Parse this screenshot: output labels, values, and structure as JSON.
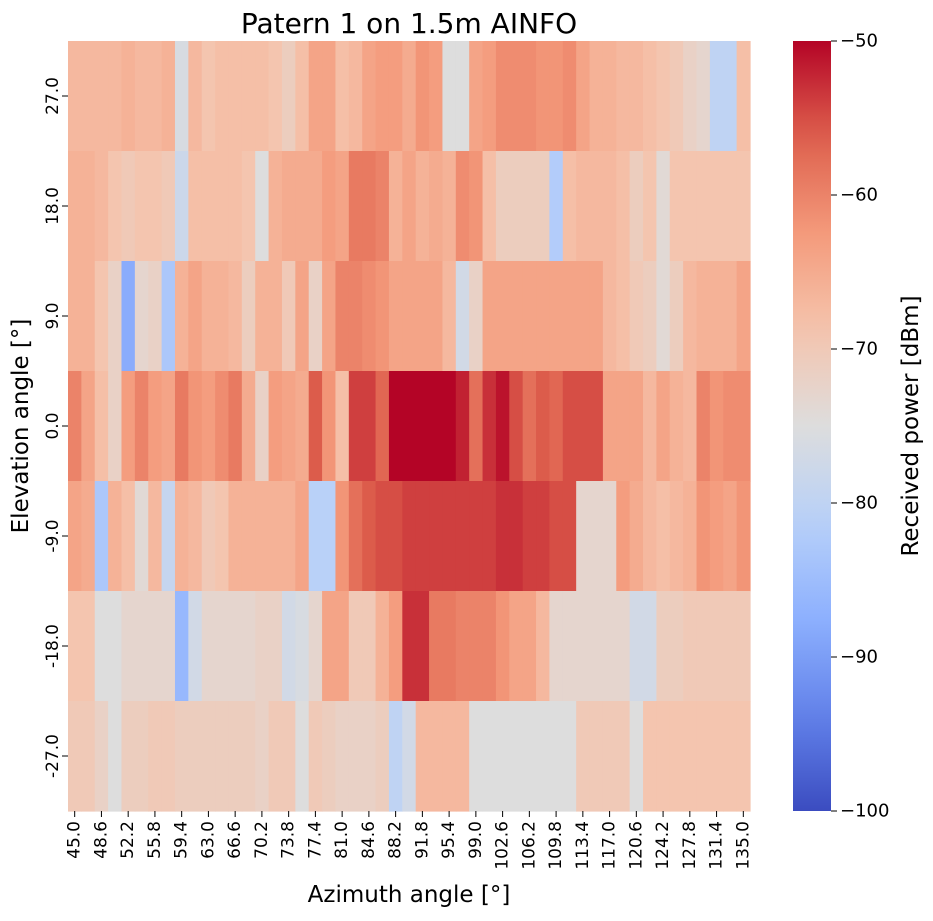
{
  "chart_data": {
    "type": "heatmap",
    "title": "Patern 1 on 1.5m AINFO",
    "xlabel": "Azimuth angle [°]",
    "ylabel": "Elevation angle [°]",
    "x": [
      45.0,
      46.8,
      48.6,
      50.4,
      52.2,
      54.0,
      55.8,
      57.6,
      59.4,
      61.2,
      63.0,
      64.8,
      66.6,
      68.4,
      70.2,
      72.0,
      73.8,
      75.6,
      77.4,
      79.2,
      81.0,
      82.8,
      84.6,
      86.4,
      88.2,
      90.0,
      91.8,
      93.6,
      95.4,
      97.2,
      99.0,
      100.8,
      102.6,
      104.4,
      106.2,
      108.0,
      109.8,
      111.6,
      113.4,
      115.2,
      117.0,
      118.8,
      120.6,
      122.4,
      124.2,
      126.0,
      127.8,
      129.6,
      131.4,
      133.2,
      135.0
    ],
    "x_tick_labels": [
      "45.0",
      "48.6",
      "52.2",
      "55.8",
      "59.4",
      "63.0",
      "66.6",
      "70.2",
      "73.8",
      "77.4",
      "81.0",
      "84.6",
      "88.2",
      "91.8",
      "95.4",
      "99.0",
      "102.6",
      "106.2",
      "109.8",
      "113.4",
      "117.0",
      "120.6",
      "124.2",
      "127.8",
      "131.4",
      "135.0"
    ],
    "y": [
      27.0,
      18.0,
      9.0,
      0.0,
      -9.0,
      -18.0,
      -27.0
    ],
    "y_tick_labels": [
      "27.0",
      "18.0",
      "9.0",
      "0.0",
      "-9.0",
      "-18.0",
      "-27.0"
    ],
    "z": [
      [
        -67,
        -67,
        -67,
        -67,
        -66,
        -67,
        -67,
        -66,
        -76,
        -67,
        -69,
        -68,
        -68,
        -68,
        -68,
        -69,
        -71,
        -68,
        -64,
        -64,
        -68,
        -67,
        -64,
        -63,
        -63,
        -65,
        -62,
        -63,
        -75,
        -75,
        -64,
        -63,
        -61,
        -61,
        -61,
        -62,
        -62,
        -61,
        -64,
        -66,
        -66,
        -67,
        -67,
        -68,
        -69,
        -70,
        -72,
        -73,
        -80,
        -80,
        -68
      ],
      [
        -66,
        -66,
        -67,
        -69,
        -70,
        -69,
        -69,
        -70,
        -78,
        -68,
        -68,
        -68,
        -68,
        -69,
        -75,
        -66,
        -65,
        -65,
        -65,
        -63,
        -64,
        -59,
        -59,
        -60,
        -66,
        -64,
        -66,
        -65,
        -66,
        -61,
        -62,
        -68,
        -71,
        -71,
        -71,
        -71,
        -82,
        -68,
        -67,
        -67,
        -67,
        -68,
        -71,
        -69,
        -74,
        -69,
        -69,
        -69,
        -69,
        -69,
        -69
      ],
      [
        -66,
        -66,
        -69,
        -72,
        -88,
        -73,
        -72,
        -83,
        -66,
        -64,
        -66,
        -66,
        -67,
        -71,
        -66,
        -66,
        -70,
        -64,
        -72,
        -64,
        -60,
        -60,
        -61,
        -62,
        -64,
        -64,
        -64,
        -64,
        -67,
        -77,
        -72,
        -64,
        -64,
        -64,
        -64,
        -64,
        -64,
        -64,
        -64,
        -64,
        -67,
        -68,
        -70,
        -71,
        -74,
        -71,
        -67,
        -66,
        -66,
        -66,
        -64
      ],
      [
        -60,
        -64,
        -68,
        -72,
        -63,
        -60,
        -63,
        -64,
        -59,
        -62,
        -63,
        -61,
        -59,
        -65,
        -72,
        -63,
        -64,
        -65,
        -56,
        -62,
        -68,
        -54,
        -54,
        -57,
        -50,
        -50,
        -50,
        -50,
        -50,
        -52,
        -58,
        -53,
        -51,
        -55,
        -58,
        -56,
        -57,
        -55,
        -55,
        -55,
        -64,
        -64,
        -64,
        -67,
        -64,
        -66,
        -67,
        -60,
        -62,
        -61,
        -61
      ],
      [
        -64,
        -65,
        -83,
        -66,
        -68,
        -74,
        -67,
        -79,
        -66,
        -67,
        -70,
        -69,
        -66,
        -66,
        -66,
        -66,
        -66,
        -64,
        -81,
        -81,
        -62,
        -58,
        -56,
        -55,
        -55,
        -54,
        -54,
        -54,
        -54,
        -54,
        -54,
        -54,
        -53,
        -53,
        -54,
        -54,
        -55,
        -55,
        -73,
        -73,
        -73,
        -63,
        -65,
        -67,
        -68,
        -67,
        -66,
        -62,
        -63,
        -64,
        -62
      ],
      [
        -69,
        -69,
        -75,
        -75,
        -73,
        -73,
        -73,
        -73,
        -86,
        -77,
        -73,
        -73,
        -73,
        -73,
        -72,
        -72,
        -77,
        -76,
        -73,
        -64,
        -64,
        -70,
        -70,
        -66,
        -63,
        -53,
        -53,
        -59,
        -59,
        -60,
        -60,
        -60,
        -62,
        -64,
        -64,
        -67,
        -73,
        -73,
        -73,
        -73,
        -73,
        -73,
        -77,
        -77,
        -71,
        -71,
        -70,
        -70,
        -70,
        -70,
        -70
      ],
      [
        -70,
        -70,
        -72,
        -75,
        -71,
        -71,
        -70,
        -70,
        -71,
        -71,
        -71,
        -71,
        -71,
        -71,
        -72,
        -70,
        -70,
        -75,
        -70,
        -71,
        -72,
        -72,
        -72,
        -71,
        -80,
        -77,
        -67,
        -67,
        -67,
        -67,
        -75,
        -75,
        -75,
        -75,
        -75,
        -75,
        -75,
        -75,
        -70,
        -70,
        -70,
        -70,
        -75,
        -69,
        -69,
        -69,
        -69,
        -69,
        -69,
        -69,
        -69
      ]
    ],
    "colorbar": {
      "label": "Received power [dBm]",
      "range": [
        -100,
        -50
      ],
      "ticks": [
        -50,
        -60,
        -70,
        -80,
        -90,
        -100
      ],
      "tick_labels": [
        "−50",
        "−60",
        "−70",
        "−80",
        "−90",
        "−100"
      ]
    },
    "colormap": "coolwarm",
    "grid": false
  }
}
